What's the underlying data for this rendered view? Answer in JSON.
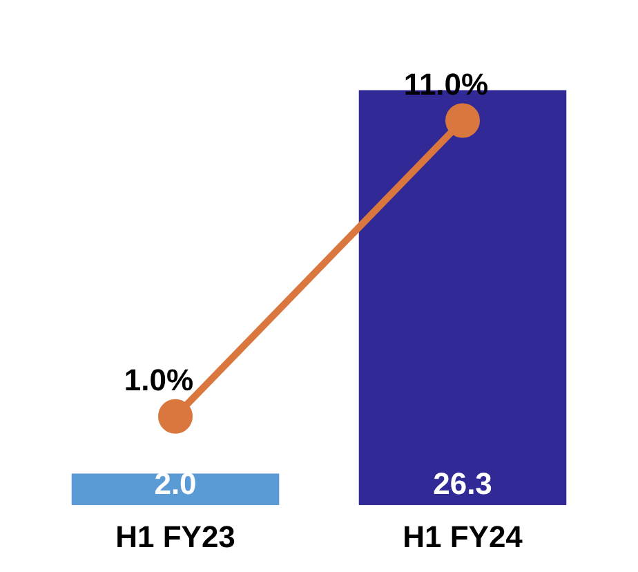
{
  "chart_data": {
    "type": "bar",
    "categories": [
      "H1 FY23",
      "H1 FY24"
    ],
    "series": [
      {
        "colors": [
          "#5b9bd5",
          "#312a96"
        ],
        "values": [
          2.0,
          26.3
        ],
        "value_labels": [
          "2.0",
          "26.3"
        ]
      },
      {
        "type": "line",
        "axis": "y2",
        "color": "#d9773f",
        "values": [
          1.0,
          11.0
        ],
        "value_labels": [
          "1.0%",
          "11.0%"
        ]
      }
    ],
    "tick_labels": "x",
    "grid": false,
    "legend": false,
    "marker": "circle",
    "line_style": "solid"
  }
}
